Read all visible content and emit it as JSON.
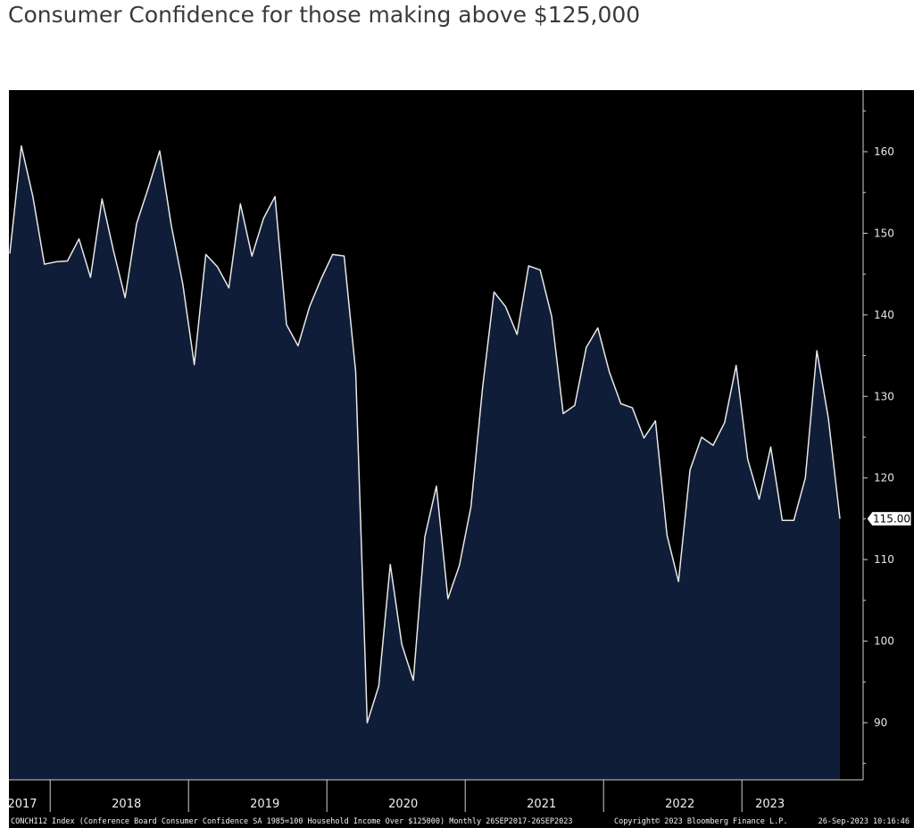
{
  "title": "Consumer Confidence for those making above $125,000",
  "footer": {
    "left": "CONCHI12 Index (Conference Board Consumer Confidence SA 1985=100 Household Income Over $125000) Monthly 26SEP2017-26SEP2023",
    "center": "Copyright© 2023 Bloomberg Finance L.P.",
    "right": "26-Sep-2023 10:16:46"
  },
  "colors": {
    "background": "#000000",
    "area_fill": "#0f1d38",
    "line": "#e8e8e8",
    "axis": "#cfcfcf"
  },
  "chart_data": {
    "type": "area",
    "title": "Consumer Confidence for those making above $125,000",
    "xlabel": "",
    "ylabel": "",
    "ylim": [
      83,
      168
    ],
    "y_ticks": [
      90,
      100,
      110,
      120,
      130,
      140,
      150,
      160
    ],
    "y_axis_side": "right",
    "x_year_labels": [
      "2017",
      "2018",
      "2019",
      "2020",
      "2021",
      "2022",
      "2023"
    ],
    "last_value_label": "115.00",
    "grid": false,
    "legend": "none",
    "series": [
      {
        "x": [
          "2017-09",
          "2017-10",
          "2017-11",
          "2017-12",
          "2018-01",
          "2018-02",
          "2018-03",
          "2018-04",
          "2018-05",
          "2018-06",
          "2018-07",
          "2018-08",
          "2018-09",
          "2018-10",
          "2018-11",
          "2018-12",
          "2019-01",
          "2019-02",
          "2019-03",
          "2019-04",
          "2019-05",
          "2019-06",
          "2019-07",
          "2019-08",
          "2019-09",
          "2019-10",
          "2019-11",
          "2019-12",
          "2020-01",
          "2020-02",
          "2020-03",
          "2020-04",
          "2020-05",
          "2020-06",
          "2020-07",
          "2020-08",
          "2020-09",
          "2020-10",
          "2020-11",
          "2020-12",
          "2021-01",
          "2021-02",
          "2021-03",
          "2021-04",
          "2021-05",
          "2021-06",
          "2021-07",
          "2021-08",
          "2021-09",
          "2021-10",
          "2021-11",
          "2021-12",
          "2022-01",
          "2022-02",
          "2022-03",
          "2022-04",
          "2022-05",
          "2022-06",
          "2022-07",
          "2022-08",
          "2022-09",
          "2022-10",
          "2022-11",
          "2022-12",
          "2023-01",
          "2023-02",
          "2023-03",
          "2023-04",
          "2023-05",
          "2023-06",
          "2023-07",
          "2023-08",
          "2023-09"
        ],
        "values": [
          147.5,
          160.7,
          154.5,
          146.2,
          146.5,
          146.6,
          149.3,
          144.6,
          154.2,
          147.8,
          142.1,
          151.2,
          155.5,
          160.1,
          151.0,
          143.8,
          133.9,
          147.4,
          145.9,
          143.3,
          153.6,
          147.2,
          151.8,
          154.5,
          138.8,
          136.2,
          141.0,
          144.4,
          147.4,
          147.2,
          133.0,
          90.0,
          94.5,
          109.4,
          99.6,
          95.2,
          112.8,
          119.0,
          105.2,
          109.3,
          116.5,
          131.0,
          142.8,
          141.0,
          137.6,
          146.0,
          145.5,
          139.8,
          127.9,
          128.9,
          136.0,
          138.4,
          133.0,
          129.1,
          128.6,
          124.9,
          127.0,
          113.0,
          107.3,
          121.0,
          125.0,
          124.0,
          126.8,
          133.8,
          122.3,
          117.4,
          123.8,
          114.8,
          114.8,
          120.0,
          135.6,
          127.3,
          115.0
        ]
      }
    ]
  }
}
